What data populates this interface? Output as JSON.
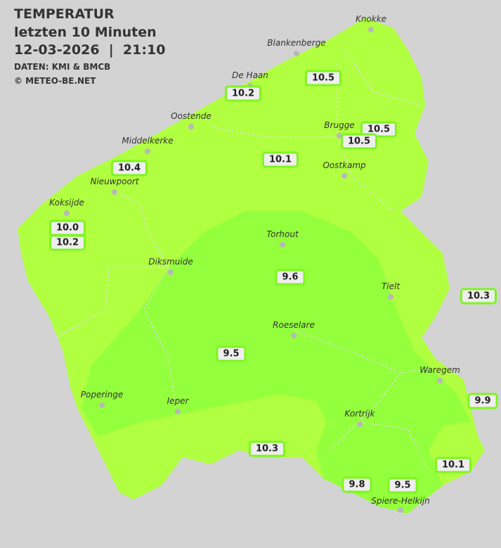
{
  "header": {
    "title": "TEMPERATUR",
    "subtitle": "letzten 10 Minuten",
    "datetime": "12-03-2026  |  21:10",
    "source": "DATEN: KMI & BMCB",
    "copyright": "© METEO-BE.NET"
  },
  "colors": {
    "background": "#d3d3d3",
    "zone_10": "#b0ff40",
    "zone_9_5": "#94ff3c",
    "label_border": "#7ef520"
  },
  "towns": [
    "Knokke",
    "Blankenberge",
    "De Haan",
    "Oostende",
    "Middelkerke",
    "Nieuwpoort",
    "Koksijde",
    "Brugge",
    "Oostkamp",
    "Torhout",
    "Diksmuide",
    "Tielt",
    "Roeselare",
    "Waregem",
    "Poperinge",
    "Ieper",
    "Kortrijk",
    "Spiere-Helkijn"
  ],
  "values": [
    "10.5",
    "10.2",
    "10.5",
    "10.5",
    "10.1",
    "10.4",
    "10.0",
    "10.2",
    "9.6",
    "10.3",
    "9.5",
    "9.9",
    "10.3",
    "10.1",
    "9.8",
    "9.5"
  ]
}
